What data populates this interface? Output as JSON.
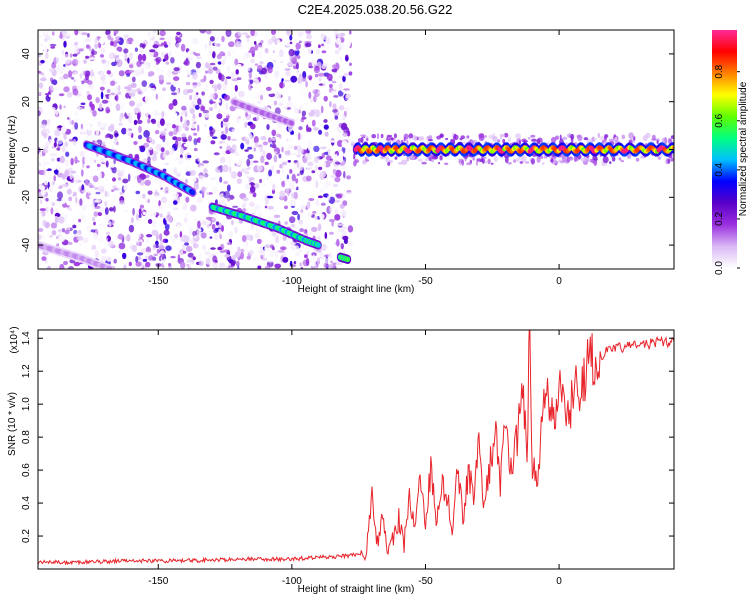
{
  "title": "C2E4.2025.038.20.56.G22",
  "chart_data": [
    {
      "type": "heatmap",
      "title": "C2E4.2025.038.20.56.G22",
      "xlabel": "Height of straight line (km)",
      "ylabel": "Frequency (Hz)",
      "xlim": [
        -195,
        43
      ],
      "ylim": [
        -50,
        50
      ],
      "xticks": [
        -150,
        -100,
        -50,
        0
      ],
      "xtick_labels": [
        "-150",
        "-100",
        "-50",
        "0"
      ],
      "yticks": [
        -40,
        -20,
        0,
        20,
        40
      ],
      "ytick_labels": [
        "-40",
        "-20",
        "0",
        "20",
        "40"
      ],
      "colorbar": {
        "label": "Normalized spectral amplitude",
        "range": [
          0,
          0.97
        ],
        "ticks": [
          0.0,
          0.2,
          0.4,
          0.6,
          0.8
        ],
        "tick_labels": [
          "0.0",
          "0.2",
          "0.4",
          "0.6",
          "0.8"
        ],
        "colors": [
          "#ffffff",
          "#d9b8f5",
          "#9b30e0",
          "#5a00c8",
          "#0000ff",
          "#00c0ff",
          "#00ff80",
          "#60ff00",
          "#ffff00",
          "#ff8000",
          "#ff0000",
          "#ff2a9a"
        ]
      },
      "features": [
        {
          "name": "steep descending track",
          "x": [
            -177,
            -160,
            -148,
            -137
          ],
          "y": [
            2,
            -5,
            -11,
            -18
          ],
          "amplitude": 0.45
        },
        {
          "name": "main descending track",
          "x": [
            -130,
            -118,
            -105,
            -95,
            -90
          ],
          "y": [
            -24,
            -28,
            -33,
            -38,
            -40
          ],
          "amplitude": 0.55
        },
        {
          "name": "end of descending track",
          "x": [
            -82,
            -79
          ],
          "y": [
            -45,
            -46
          ],
          "amplitude": 0.6
        },
        {
          "name": "faint upper track",
          "x": [
            -122,
            -110,
            -100
          ],
          "y": [
            20,
            15,
            11
          ],
          "amplitude": 0.15
        },
        {
          "name": "lower left track",
          "x": [
            -195,
            -180,
            -168
          ],
          "y": [
            -40,
            -45,
            -50
          ],
          "amplitude": 0.12
        },
        {
          "name": "zero frequency ridge",
          "x": [
            -76,
            -60,
            -40,
            -20,
            0,
            20,
            43
          ],
          "y": [
            0,
            0,
            0,
            0,
            0,
            0,
            0
          ],
          "amplitude": 0.85
        }
      ]
    },
    {
      "type": "line",
      "xlabel": "Height of straight line (km)",
      "ylabel": "SNR (10 * v/v)",
      "y_multiplier_label": "(x10⁴)",
      "xlim": [
        -195,
        43
      ],
      "ylim": [
        0,
        1.45
      ],
      "xticks": [
        -150,
        -100,
        -50,
        0
      ],
      "xtick_labels": [
        "-150",
        "-100",
        "-50",
        "0"
      ],
      "yticks": [
        0.2,
        0.4,
        0.6,
        0.8,
        1.0,
        1.2,
        1.4
      ],
      "ytick_labels": [
        "0.2",
        "0.4",
        "0.6",
        "0.8",
        "1.0",
        "1.2",
        "1.4"
      ],
      "color": "#e8232a",
      "series": [
        {
          "x": [
            -195,
            -180,
            -160,
            -140,
            -120,
            -100,
            -90,
            -80,
            -75,
            -72,
            -70,
            -68,
            -66,
            -64,
            -62,
            -60,
            -58,
            -56,
            -54,
            -52,
            -50,
            -48,
            -46,
            -44,
            -42,
            -40,
            -38,
            -36,
            -34,
            -32,
            -30,
            -28,
            -26,
            -24,
            -22,
            -20,
            -18,
            -16,
            -14,
            -12,
            -11,
            -10,
            -8,
            -6,
            -4,
            -2,
            0,
            2,
            4,
            6,
            8,
            10,
            12,
            14,
            16,
            18,
            20,
            25,
            30,
            35,
            40,
            43
          ],
          "y": [
            0.04,
            0.04,
            0.05,
            0.05,
            0.06,
            0.06,
            0.07,
            0.08,
            0.09,
            0.1,
            0.5,
            0.15,
            0.3,
            0.12,
            0.2,
            0.3,
            0.15,
            0.45,
            0.25,
            0.55,
            0.3,
            0.6,
            0.3,
            0.55,
            0.45,
            0.25,
            0.65,
            0.3,
            0.6,
            0.45,
            0.75,
            0.4,
            0.6,
            0.85,
            0.5,
            0.9,
            0.6,
            0.75,
            1.15,
            0.75,
            1.45,
            0.65,
            0.45,
            1.0,
            1.1,
            0.85,
            1.15,
            1.05,
            0.9,
            1.25,
            1.1,
            1.2,
            1.25,
            1.3,
            1.3,
            1.32,
            1.33,
            1.35,
            1.36,
            1.37,
            1.38,
            1.38
          ]
        }
      ]
    }
  ]
}
